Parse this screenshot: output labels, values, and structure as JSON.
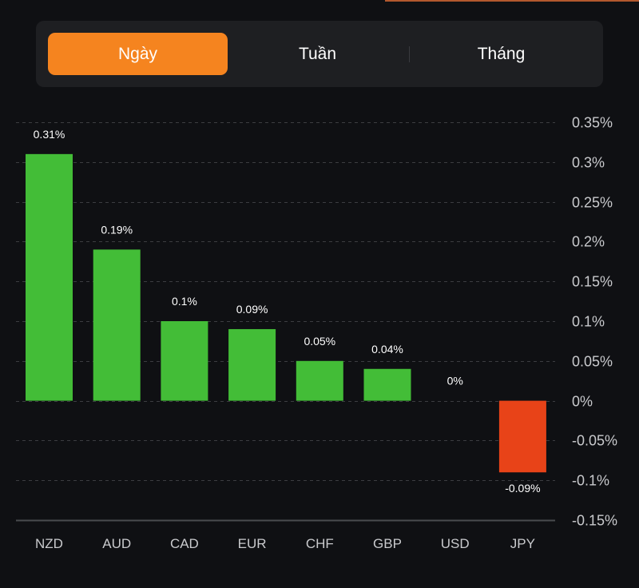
{
  "period_tabs": {
    "items": [
      {
        "label": "Ngày",
        "active": true
      },
      {
        "label": "Tuần",
        "active": false
      },
      {
        "label": "Tháng",
        "active": false
      }
    ]
  },
  "colors": {
    "positive": "#43bd37",
    "negative": "#e84318",
    "accent": "#f5841f",
    "grid": "#3c3d41",
    "axis": "#4a4b4f"
  },
  "chart_data": {
    "type": "bar",
    "title": "",
    "xlabel": "",
    "ylabel": "",
    "categories": [
      "NZD",
      "AUD",
      "CAD",
      "EUR",
      "CHF",
      "GBP",
      "USD",
      "JPY"
    ],
    "values": [
      0.31,
      0.19,
      0.1,
      0.09,
      0.05,
      0.04,
      0,
      -0.09
    ],
    "data_labels": [
      "0.31%",
      "0.19%",
      "0.1%",
      "0.09%",
      "0.05%",
      "0.04%",
      "0%",
      "-0.09%"
    ],
    "unit": "%",
    "ylim": [
      -0.15,
      0.35
    ],
    "yticks": [
      0.35,
      0.3,
      0.25,
      0.2,
      0.15,
      0.1,
      0.05,
      0,
      -0.05,
      -0.1,
      -0.15
    ],
    "ytick_labels": [
      "0.35%",
      "0.3%",
      "0.25%",
      "0.2%",
      "0.15%",
      "0.1%",
      "0.05%",
      "0%",
      "-0.05%",
      "-0.1%",
      "-0.15%"
    ],
    "yaxis_position": "right",
    "grid": true,
    "legend": "none"
  }
}
